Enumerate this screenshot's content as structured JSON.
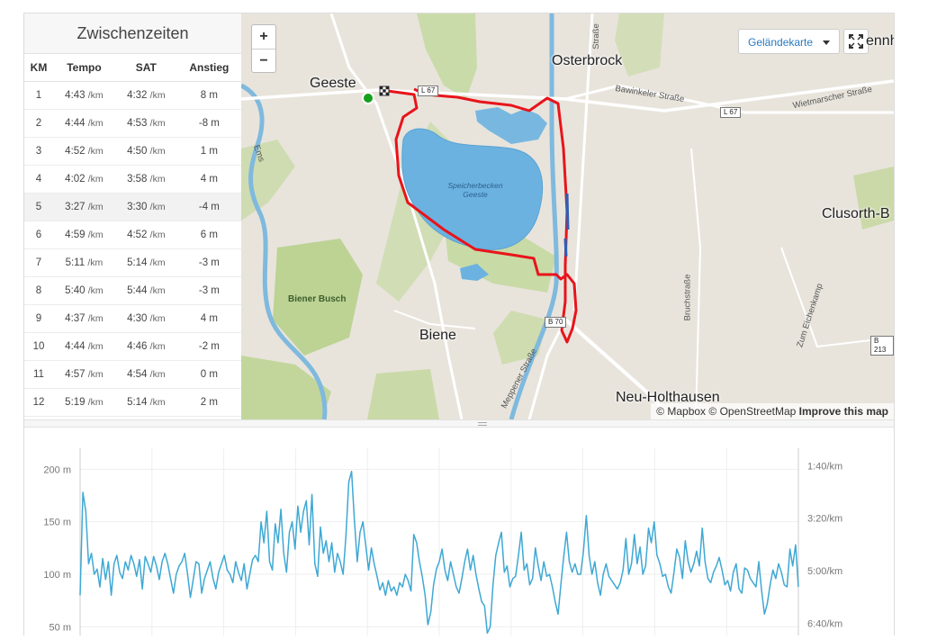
{
  "splits": {
    "title": "Zwischenzeiten",
    "columns": [
      "KM",
      "Tempo",
      "SAT",
      "Anstieg"
    ],
    "pace_unit": "/km",
    "rows": [
      {
        "km": "1",
        "tempo": "4:43",
        "sat": "4:32",
        "anstieg": "8 m"
      },
      {
        "km": "2",
        "tempo": "4:44",
        "sat": "4:53",
        "anstieg": "-8 m"
      },
      {
        "km": "3",
        "tempo": "4:52",
        "sat": "4:50",
        "anstieg": "1 m"
      },
      {
        "km": "4",
        "tempo": "4:02",
        "sat": "3:58",
        "anstieg": "4 m"
      },
      {
        "km": "5",
        "tempo": "3:27",
        "sat": "3:30",
        "anstieg": "-4 m"
      },
      {
        "km": "6",
        "tempo": "4:59",
        "sat": "4:52",
        "anstieg": "6 m"
      },
      {
        "km": "7",
        "tempo": "5:11",
        "sat": "5:14",
        "anstieg": "-3 m"
      },
      {
        "km": "8",
        "tempo": "5:40",
        "sat": "5:44",
        "anstieg": "-3 m"
      },
      {
        "km": "9",
        "tempo": "4:37",
        "sat": "4:30",
        "anstieg": "4 m"
      },
      {
        "km": "10",
        "tempo": "4:44",
        "sat": "4:46",
        "anstieg": "-2 m"
      },
      {
        "km": "11",
        "tempo": "4:57",
        "sat": "4:54",
        "anstieg": "0 m"
      },
      {
        "km": "12",
        "tempo": "5:19",
        "sat": "5:14",
        "anstieg": "2 m"
      }
    ],
    "highlighted_row": 4
  },
  "map": {
    "zoom_in": "+",
    "zoom_out": "−",
    "layer_select": "Geländekarte",
    "fullscreen_icon": "fullscreen-icon",
    "attribution_mapbox": "© Mapbox",
    "attribution_osm": "© OpenStreetMap",
    "attribution_improve": "Improve this map",
    "places": {
      "geeste": "Geeste",
      "osterbrock": "Osterbrock",
      "biene": "Biene",
      "neu_holthausen": "Neu-Holthausen",
      "clusorth": "Clusorth-B",
      "ennha": "ennha"
    },
    "lake_label": "Speicherbecken Geeste",
    "forest_label": "Biener Busch",
    "streets": {
      "bawinkeler": "Bawinkeler Straße",
      "wietmarscher": "Wietmarscher Straße",
      "meppener": "Meppener Straße",
      "bruchstrasse": "Bruchstraße",
      "eichenkamp": "Zum Eichenkamp",
      "strasse_top": "Straße",
      "ems": "Ems"
    },
    "shields": {
      "l67a": "L 67",
      "l67b": "L 67",
      "b70": "B 70",
      "b213": "B 213"
    },
    "route_color": "#e8141b",
    "start_color": "#15a01d"
  },
  "chart_data": {
    "type": "line",
    "elevation_ticks": [
      "200 m",
      "150 m",
      "100 m",
      "50 m"
    ],
    "pace_ticks": [
      "1:40/km",
      "3:20/km",
      "5:00/km",
      "6:40/km"
    ],
    "left_axis": {
      "unit": "m",
      "ylim": [
        40,
        220
      ]
    },
    "right_axis": {
      "unit": "/km"
    },
    "series": [
      {
        "color": "#3ea8d4",
        "values": [
          80,
          178,
          160,
          110,
          120,
          100,
          105,
          88,
          115,
          95,
          112,
          80,
          110,
          118,
          102,
          96,
          112,
          104,
          118,
          110,
          98,
          114,
          86,
          117,
          110,
          102,
          117,
          108,
          95,
          112,
          120,
          110,
          96,
          82,
          100,
          108,
          112,
          120,
          100,
          78,
          95,
          112,
          110,
          82,
          96,
          104,
          112,
          96,
          86,
          102,
          110,
          118,
          104,
          100,
          92,
          112,
          102,
          94,
          110,
          86,
          100,
          114,
          118,
          112,
          150,
          130,
          160,
          112,
          104,
          148,
          130,
          162,
          120,
          102,
          140,
          150,
          124,
          165,
          140,
          160,
          170,
          128,
          176,
          110,
          98,
          145,
          120,
          132,
          112,
          130,
          102,
          120,
          112,
          100,
          136,
          188,
          198,
          152,
          112,
          140,
          150,
          128,
          104,
          125,
          110,
          98,
          85,
          92,
          80,
          94,
          84,
          88,
          80,
          92,
          88,
          100,
          94,
          84,
          138,
          130,
          112,
          98,
          80,
          52,
          64,
          90,
          105,
          112,
          124,
          104,
          94,
          112,
          100,
          88,
          82,
          96,
          112,
          124,
          104,
          118,
          100,
          86,
          74,
          70,
          44,
          50,
          90,
          118,
          130,
          140,
          102,
          108,
          88,
          96,
          98,
          118,
          140,
          104,
          110,
          90,
          96,
          125,
          108,
          94,
          112,
          98,
          100,
          88,
          74,
          62,
          90,
          116,
          140,
          112,
          102,
          110,
          100,
          100,
          122,
          156,
          118,
          100,
          112,
          92,
          80,
          100,
          110,
          98,
          94,
          90,
          86,
          92,
          104,
          134,
          100,
          110,
          138,
          110,
          126,
          100,
          108,
          144,
          130,
          150,
          118,
          110,
          98,
          100,
          88,
          82,
          102,
          124,
          116,
          96,
          132,
          112,
          102,
          110,
          122,
          108,
          144,
          112,
          96,
          92,
          102,
          108,
          116,
          104,
          90,
          94,
          84,
          102,
          110,
          86,
          82,
          106,
          104,
          96,
          92,
          88,
          112,
          84,
          62,
          72,
          90,
          104,
          96,
          110,
          102,
          90,
          88,
          124,
          108,
          128,
          88
        ]
      }
    ]
  }
}
